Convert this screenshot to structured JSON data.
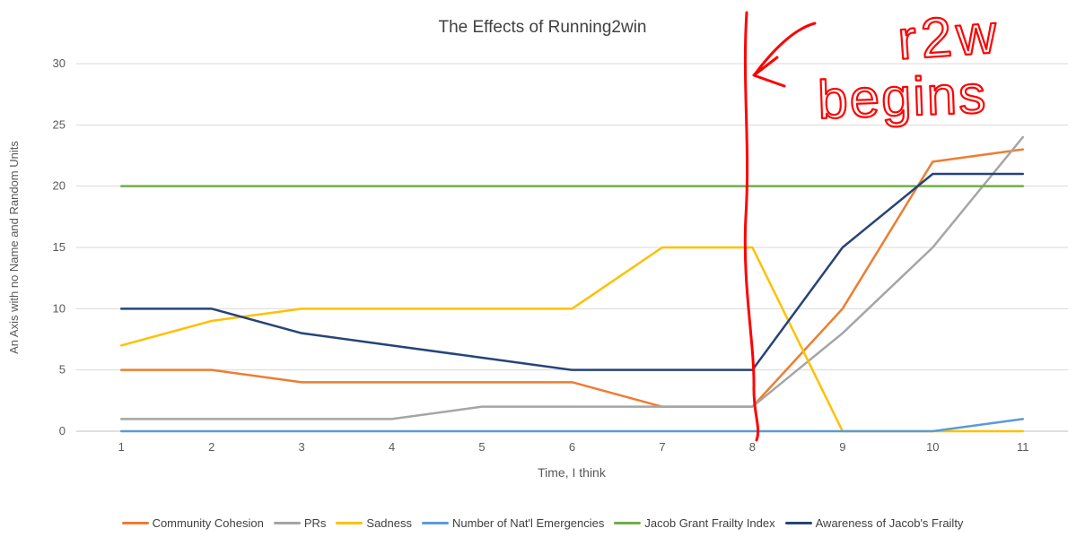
{
  "chart_data": {
    "type": "line",
    "title": "The Effects of Running2win",
    "xlabel": "Time, I think",
    "ylabel": "An Axis with no Name and Random Units",
    "x": [
      1,
      2,
      3,
      4,
      5,
      6,
      7,
      8,
      9,
      10,
      11
    ],
    "ylim": [
      0,
      30
    ],
    "yticks": [
      0,
      5,
      10,
      15,
      20,
      25,
      30
    ],
    "grid": true,
    "legend_position": "bottom",
    "series": [
      {
        "name": "Community Cohesion",
        "color": "#ED7D31",
        "values": [
          5,
          5,
          4,
          4,
          4,
          4,
          2,
          2,
          10,
          22,
          23
        ]
      },
      {
        "name": "PRs",
        "color": "#A5A5A5",
        "values": [
          1,
          1,
          1,
          1,
          2,
          2,
          2,
          2,
          8,
          15,
          24
        ]
      },
      {
        "name": "Sadness",
        "color": "#FFC000",
        "values": [
          7,
          9,
          10,
          10,
          10,
          10,
          15,
          15,
          0,
          0,
          0
        ]
      },
      {
        "name": "Number of Nat'l Emergencies",
        "color": "#5B9BD5",
        "values": [
          0,
          0,
          0,
          0,
          0,
          0,
          0,
          0,
          0,
          0,
          1
        ]
      },
      {
        "name": "Jacob Grant Frailty Index",
        "color": "#70AD47",
        "values": [
          20,
          20,
          20,
          20,
          20,
          20,
          20,
          20,
          20,
          20,
          20
        ]
      },
      {
        "name": "Awareness of Jacob's Frailty",
        "color": "#264478",
        "values": [
          10,
          10,
          8,
          7,
          6,
          5,
          5,
          5,
          15,
          21,
          21
        ]
      }
    ],
    "annotation": {
      "color": "#FF0000",
      "marked_x": 8,
      "line1": "r2w",
      "line2": "begins"
    }
  }
}
